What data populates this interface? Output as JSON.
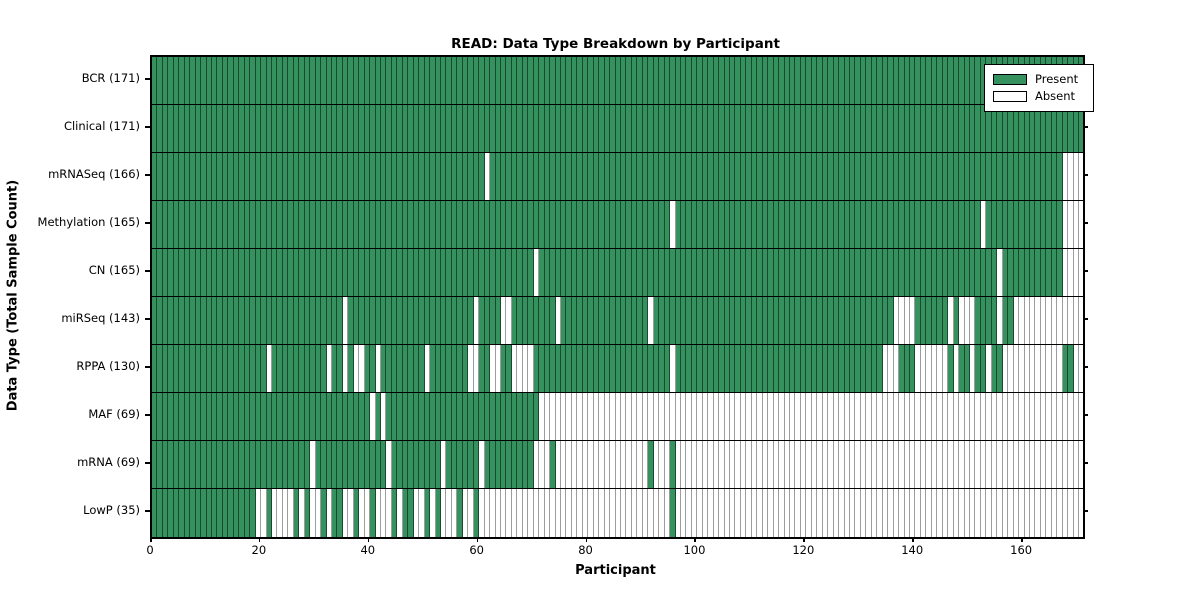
{
  "title": "READ: Data Type Breakdown by Participant",
  "xlabel": "Participant",
  "ylabel": "Data Type (Total Sample Count)",
  "legend": {
    "position": "upper right",
    "present_label": "Present",
    "absent_label": "Absent"
  },
  "colors": {
    "present": "#35925f",
    "absent": "#ffffff",
    "grid_on_green": "rgba(0,0,0,0.50)",
    "grid_on_white": "#9d9d9d",
    "border": "#000000"
  },
  "x_ticks": [
    0,
    20,
    40,
    60,
    80,
    100,
    120,
    140,
    160
  ],
  "chart_data": {
    "type": "heatmap",
    "x_range": [
      0,
      171
    ],
    "value_legend": {
      "1": "Present",
      "0": "Absent"
    },
    "xlabel": "Participant",
    "ylabel": "Data Type (Total Sample Count)",
    "grid": true,
    "legend_position": "upper right",
    "rows": [
      {
        "label": "BCR (171)",
        "name": "BCR",
        "present_count": 171,
        "absent_ranges": []
      },
      {
        "label": "Clinical (171)",
        "name": "Clinical",
        "present_count": 171,
        "absent_ranges": []
      },
      {
        "label": "mRNASeq (166)",
        "name": "mRNASeq",
        "present_count": 166,
        "absent_ranges": [
          [
            61,
            61
          ],
          [
            167,
            170
          ]
        ]
      },
      {
        "label": "Methylation (165)",
        "name": "Methylation",
        "present_count": 165,
        "absent_ranges": [
          [
            95,
            95
          ],
          [
            152,
            152
          ],
          [
            167,
            170
          ]
        ]
      },
      {
        "label": "CN (165)",
        "name": "CN",
        "present_count": 165,
        "absent_ranges": [
          [
            70,
            70
          ],
          [
            155,
            155
          ],
          [
            167,
            170
          ]
        ]
      },
      {
        "label": "miRSeq (143)",
        "name": "miRSeq",
        "present_count": 143,
        "absent_ranges": [
          [
            35,
            35
          ],
          [
            59,
            59
          ],
          [
            64,
            65
          ],
          [
            74,
            74
          ],
          [
            91,
            91
          ],
          [
            136,
            139
          ],
          [
            146,
            146
          ],
          [
            148,
            150
          ],
          [
            155,
            155
          ],
          [
            158,
            170
          ]
        ]
      },
      {
        "label": "RPPA (130)",
        "name": "RPPA",
        "present_count": 130,
        "absent_ranges": [
          [
            21,
            21
          ],
          [
            32,
            32
          ],
          [
            35,
            35
          ],
          [
            37,
            38
          ],
          [
            41,
            41
          ],
          [
            50,
            50
          ],
          [
            58,
            59
          ],
          [
            62,
            63
          ],
          [
            66,
            69
          ],
          [
            95,
            95
          ],
          [
            134,
            136
          ],
          [
            140,
            145
          ],
          [
            147,
            147
          ],
          [
            150,
            150
          ],
          [
            153,
            153
          ],
          [
            156,
            166
          ],
          [
            169,
            170
          ]
        ]
      },
      {
        "label": "MAF (69)",
        "name": "MAF",
        "present_count": 69,
        "absent_ranges": [
          [
            40,
            40
          ],
          [
            42,
            42
          ],
          [
            71,
            170
          ]
        ]
      },
      {
        "label": "mRNA (69)",
        "name": "mRNA",
        "present_count": 69,
        "absent_ranges": [
          [
            29,
            29
          ],
          [
            43,
            43
          ],
          [
            53,
            53
          ],
          [
            60,
            60
          ],
          [
            70,
            72
          ],
          [
            74,
            90
          ],
          [
            92,
            94
          ],
          [
            96,
            170
          ]
        ]
      },
      {
        "label": "LowP (35)",
        "name": "LowP",
        "present_count": 35,
        "absent_ranges": [
          [
            19,
            20
          ],
          [
            22,
            25
          ],
          [
            27,
            27
          ],
          [
            29,
            30
          ],
          [
            32,
            32
          ],
          [
            35,
            36
          ],
          [
            38,
            39
          ],
          [
            41,
            43
          ],
          [
            45,
            45
          ],
          [
            48,
            49
          ],
          [
            51,
            51
          ],
          [
            53,
            55
          ],
          [
            57,
            58
          ],
          [
            60,
            94
          ],
          [
            96,
            170
          ]
        ]
      }
    ]
  }
}
